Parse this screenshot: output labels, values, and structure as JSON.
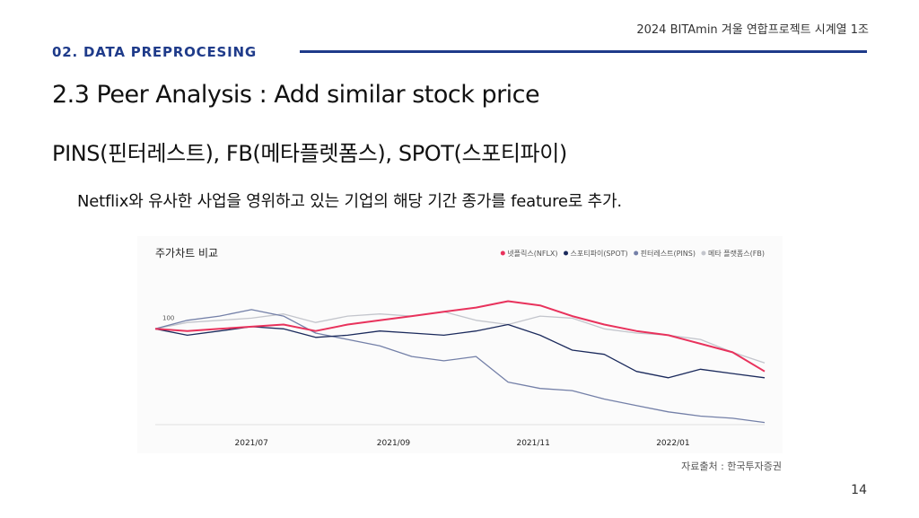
{
  "header": {
    "project": "2024 BITAmin 겨울 연합프로젝트 시계열 1조",
    "section": "02. DATA PREPROCESING"
  },
  "slide": {
    "title": "2.3 Peer Analysis : Add similar stock price",
    "subtitle": "PINS(핀터레스트), FB(메타플렛폼스), SPOT(스포티파이)",
    "description": "Netflix와 유사한 사업을 영위하고 있는 기업의 해당 기간 종가를 feature로 추가.",
    "source": "자료출처 : 한국투자증권",
    "page_number": "14"
  },
  "colors": {
    "NFLX": "#e8325c",
    "SPOT": "#1b2a5c",
    "PINS": "#7480a8",
    "FB": "#c3c5cc",
    "accent": "#1f3b8a"
  },
  "chart_data": {
    "type": "line",
    "title": "주가차트 비교",
    "x_ticks": [
      "2021/07",
      "2021/09",
      "2021/11",
      "2022/01"
    ],
    "y_label_text": "100",
    "ylim": [
      55,
      125
    ],
    "legend_position": "top-right",
    "legend": [
      "넷플릭스(NFLX)",
      "스포티파이(SPOT)",
      "핀터레스트(PINS)",
      "메타 플랫폼스(FB)"
    ],
    "x": [
      "2021/05/20",
      "2021/06/03",
      "2021/06/17",
      "2021/07/01",
      "2021/07/15",
      "2021/07/29",
      "2021/08/12",
      "2021/08/26",
      "2021/09/09",
      "2021/09/23",
      "2021/10/07",
      "2021/10/21",
      "2021/11/04",
      "2021/11/18",
      "2021/12/02",
      "2021/12/16",
      "2021/12/30",
      "2022/01/13",
      "2022/01/27",
      "2022/02/10"
    ],
    "series": [
      {
        "name": "넷플릭스(NFLX)",
        "values": [
          100,
          99,
          100,
          101,
          102,
          99,
          102,
          104,
          106,
          108,
          110,
          113,
          111,
          106,
          102,
          99,
          97,
          93,
          89,
          80
        ]
      },
      {
        "name": "스포티파이(SPOT)",
        "values": [
          100,
          97,
          99,
          101,
          100,
          96,
          97,
          99,
          98,
          97,
          99,
          102,
          97,
          90,
          88,
          80,
          77,
          81,
          79,
          77
        ]
      },
      {
        "name": "핀터레스트(PINS)",
        "values": [
          100,
          104,
          106,
          109,
          106,
          98,
          95,
          92,
          87,
          85,
          87,
          75,
          72,
          71,
          67,
          64,
          61,
          59,
          58,
          56
        ]
      },
      {
        "name": "메타 플랫폼스(FB)",
        "values": [
          100,
          103,
          104,
          105,
          107,
          103,
          106,
          107,
          106,
          108,
          104,
          102,
          106,
          105,
          100,
          98,
          97,
          95,
          89,
          84
        ]
      }
    ]
  }
}
